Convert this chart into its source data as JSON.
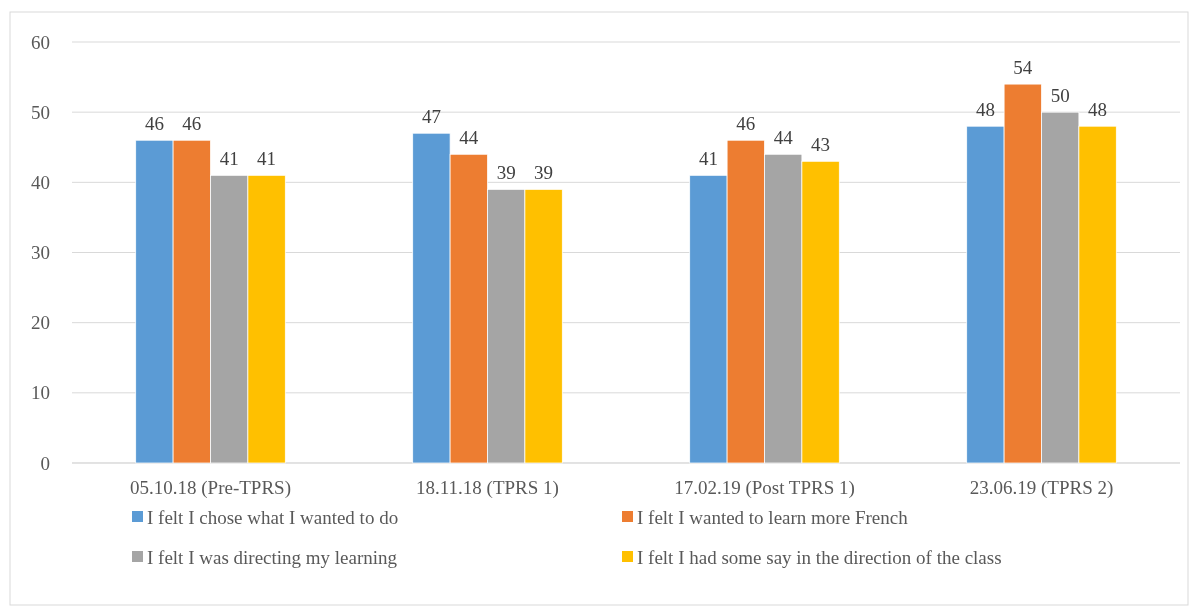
{
  "chart_data": {
    "type": "bar",
    "categories": [
      "05.10.18 (Pre-TPRS)",
      "18.11.18 (TPRS 1)",
      "17.02.19 (Post TPRS 1)",
      "23.06.19 (TPRS 2)"
    ],
    "series": [
      {
        "name": "I felt I chose what I wanted to do",
        "color": "#5b9bd5",
        "values": [
          46,
          47,
          41,
          48
        ]
      },
      {
        "name": "I felt I wanted to learn more French",
        "color": "#ed7d31",
        "values": [
          46,
          44,
          46,
          54
        ]
      },
      {
        "name": "I felt I was directing my learning",
        "color": "#a5a5a5",
        "values": [
          41,
          39,
          44,
          50
        ]
      },
      {
        "name": "I felt I had some say in the direction of the class",
        "color": "#ffc000",
        "values": [
          41,
          39,
          43,
          48
        ]
      }
    ],
    "ylim": [
      0,
      60
    ],
    "yticks": [
      0,
      10,
      20,
      30,
      40,
      50,
      60
    ],
    "grid": "y",
    "legend": "bottom",
    "data_labels": true
  }
}
